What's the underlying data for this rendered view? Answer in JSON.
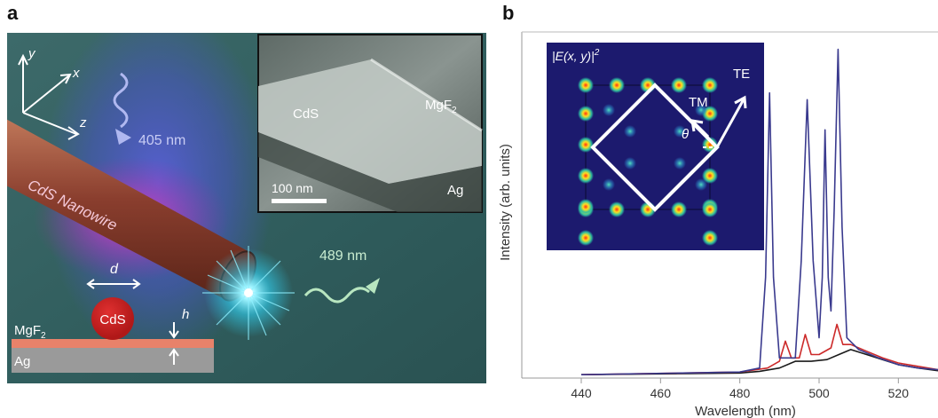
{
  "panel_a": {
    "letter": "a",
    "axis_y": "y",
    "axis_x": "x",
    "axis_z": "z",
    "pump_wavelength": "405 nm",
    "nanowire_label": "CdS Nanowire",
    "emission_wavelength": "489 nm",
    "d_label": "d",
    "h_label": "h",
    "cross_section_label": "CdS",
    "layer_top": "MgF",
    "layer_top_sub": "2",
    "layer_bottom": "Ag",
    "inset": {
      "cds": "CdS",
      "mgf": "MgF",
      "mgf_sub": "2",
      "ag": "Ag",
      "scalebar": "100 nm"
    }
  },
  "panel_b": {
    "letter": "b",
    "inset": {
      "field_label": "|E(x, y)|",
      "field_exp": "2",
      "te": "TE",
      "tm": "TM",
      "theta": "θ"
    }
  },
  "chart_data": {
    "type": "line",
    "xlabel": "Wavelength (nm)",
    "ylabel": "Intensity (arb. units)",
    "xlim": [
      425,
      530
    ],
    "ylim": [
      0,
      1.0
    ],
    "x_ticks": [
      440,
      460,
      480,
      500,
      520
    ],
    "series": [
      {
        "color": "#3a3a8e",
        "x": [
          440,
          480,
          485,
          486.5,
          487.5,
          488.5,
          490,
          494,
          495.5,
          497,
          498.5,
          500,
          500.8,
          501.5,
          502.3,
          503,
          503.8,
          504.8,
          505.8,
          507,
          510,
          515,
          520,
          525,
          530
        ],
        "y": [
          0.01,
          0.018,
          0.03,
          0.3,
          0.85,
          0.3,
          0.06,
          0.06,
          0.35,
          0.83,
          0.35,
          0.12,
          0.3,
          0.74,
          0.3,
          0.2,
          0.5,
          0.98,
          0.45,
          0.12,
          0.085,
          0.06,
          0.04,
          0.03,
          0.025
        ]
      },
      {
        "color": "#cc2a2a",
        "x": [
          440,
          480,
          487,
          490,
          491.5,
          493,
          495,
          496.5,
          498,
          500,
          503,
          504.5,
          506,
          508,
          512,
          516,
          520,
          525,
          530
        ],
        "y": [
          0.01,
          0.018,
          0.03,
          0.05,
          0.11,
          0.06,
          0.06,
          0.13,
          0.07,
          0.07,
          0.09,
          0.16,
          0.1,
          0.1,
          0.08,
          0.06,
          0.045,
          0.035,
          0.025
        ]
      },
      {
        "color": "#1a1a1a",
        "x": [
          440,
          480,
          485,
          490,
          494,
          498,
          502,
          505,
          508,
          512,
          516,
          520,
          525,
          530
        ],
        "y": [
          0.01,
          0.015,
          0.02,
          0.03,
          0.05,
          0.05,
          0.055,
          0.07,
          0.085,
          0.07,
          0.055,
          0.04,
          0.03,
          0.022
        ]
      }
    ]
  }
}
